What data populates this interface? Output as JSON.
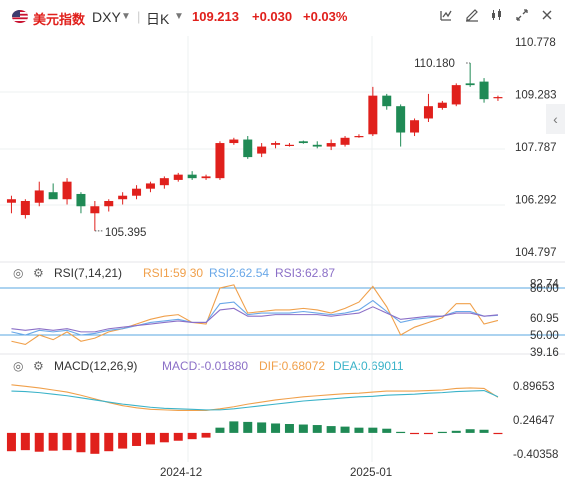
{
  "header": {
    "name": "美元指数",
    "symbol": "DXY",
    "period": "日K",
    "price": "109.213",
    "change": "+0.030",
    "change_pct": "+0.03%",
    "colors": {
      "up": "#e0201c",
      "down": "#1f8a55",
      "price": "#e0201c"
    }
  },
  "icons": [
    "us-flag-icon",
    "dropdown-icon",
    "dropdown-icon",
    "indicator-icon",
    "draw-icon",
    "settings-icon",
    "expand-icon",
    "close-icon",
    "collapse-arrow-icon",
    "eye-icon",
    "settings-icon"
  ],
  "rsi": {
    "label": "RSI(7,14,21)",
    "rsi1": "RSI1:59.30",
    "rsi2": "RSI2:62.54",
    "rsi3": "RSI3:62.87",
    "levels": [
      "80.00",
      "50.00"
    ],
    "axis": [
      "82.74",
      "60.95",
      "39.16"
    ],
    "colors": {
      "rsi1": "#f0a04b",
      "rsi2": "#6aa8e8",
      "rsi3": "#8b6fc7",
      "levels": "#5aa7e0"
    }
  },
  "macd": {
    "label": "MACD(12,26,9)",
    "macd": "MACD:-0.01880",
    "dif": "DIF:0.68072",
    "dea": "DEA:0.69011",
    "axis": [
      "0.89653",
      "0.24647",
      "-0.40358"
    ],
    "colors": {
      "macd": "#8b6fc7",
      "dif": "#f0a04b",
      "dea": "#3bb3c9"
    }
  },
  "xaxis": [
    "2024-12",
    "2025-01"
  ],
  "chart_data": [
    {
      "type": "candlestick",
      "yaxis_ticks": [
        110.778,
        109.283,
        107.787,
        106.292,
        104.797
      ],
      "ylim": [
        104.797,
        110.778
      ],
      "annotations": [
        {
          "label": "110.180",
          "at": "high"
        },
        {
          "label": "105.395",
          "at": "low"
        }
      ],
      "candles": [
        {
          "o": 106.2,
          "h": 106.4,
          "l": 105.9,
          "c": 106.3
        },
        {
          "o": 105.85,
          "h": 106.3,
          "l": 105.75,
          "c": 106.25
        },
        {
          "o": 106.2,
          "h": 106.8,
          "l": 106.1,
          "c": 106.55
        },
        {
          "o": 106.5,
          "h": 106.75,
          "l": 106.35,
          "c": 106.3
        },
        {
          "o": 106.3,
          "h": 106.9,
          "l": 106.15,
          "c": 106.8
        },
        {
          "o": 106.45,
          "h": 106.5,
          "l": 105.9,
          "c": 106.1
        },
        {
          "o": 105.9,
          "h": 106.25,
          "l": 105.4,
          "c": 106.1
        },
        {
          "o": 106.1,
          "h": 106.3,
          "l": 105.95,
          "c": 106.25
        },
        {
          "o": 106.3,
          "h": 106.5,
          "l": 106.15,
          "c": 106.4
        },
        {
          "o": 106.4,
          "h": 106.7,
          "l": 106.3,
          "c": 106.6
        },
        {
          "o": 106.6,
          "h": 106.8,
          "l": 106.5,
          "c": 106.75
        },
        {
          "o": 106.7,
          "h": 106.95,
          "l": 106.6,
          "c": 106.9
        },
        {
          "o": 106.85,
          "h": 107.05,
          "l": 106.8,
          "c": 107.0
        },
        {
          "o": 107.0,
          "h": 107.1,
          "l": 106.85,
          "c": 106.9
        },
        {
          "o": 106.9,
          "h": 107.0,
          "l": 106.85,
          "c": 106.95
        },
        {
          "o": 106.9,
          "h": 107.95,
          "l": 106.85,
          "c": 107.9
        },
        {
          "o": 107.9,
          "h": 108.05,
          "l": 107.85,
          "c": 108.0
        },
        {
          "o": 108.0,
          "h": 108.1,
          "l": 107.45,
          "c": 107.5
        },
        {
          "o": 107.6,
          "h": 107.9,
          "l": 107.5,
          "c": 107.8
        },
        {
          "o": 107.85,
          "h": 107.95,
          "l": 107.75,
          "c": 107.9
        },
        {
          "o": 107.85,
          "h": 107.9,
          "l": 107.8,
          "c": 107.85
        },
        {
          "o": 107.95,
          "h": 107.97,
          "l": 107.88,
          "c": 107.9
        },
        {
          "o": 107.85,
          "h": 107.95,
          "l": 107.75,
          "c": 107.8
        },
        {
          "o": 107.8,
          "h": 108.0,
          "l": 107.7,
          "c": 107.9
        },
        {
          "o": 107.85,
          "h": 108.1,
          "l": 107.8,
          "c": 108.05
        },
        {
          "o": 108.1,
          "h": 108.15,
          "l": 108.05,
          "c": 108.1
        },
        {
          "o": 108.15,
          "h": 109.5,
          "l": 108.1,
          "c": 109.25
        },
        {
          "o": 109.25,
          "h": 109.3,
          "l": 108.85,
          "c": 108.95
        },
        {
          "o": 108.95,
          "h": 109.0,
          "l": 107.8,
          "c": 108.2
        },
        {
          "o": 108.2,
          "h": 108.6,
          "l": 108.1,
          "c": 108.55
        },
        {
          "o": 108.6,
          "h": 109.3,
          "l": 108.5,
          "c": 108.95
        },
        {
          "o": 108.9,
          "h": 109.1,
          "l": 108.85,
          "c": 109.05
        },
        {
          "o": 109.0,
          "h": 109.6,
          "l": 108.95,
          "c": 109.55
        },
        {
          "o": 109.6,
          "h": 110.18,
          "l": 109.5,
          "c": 109.55
        },
        {
          "o": 109.65,
          "h": 109.75,
          "l": 109.05,
          "c": 109.15
        },
        {
          "o": 109.2,
          "h": 109.25,
          "l": 109.1,
          "c": 109.21
        }
      ]
    },
    {
      "type": "line",
      "name": "RSI",
      "ylim": [
        39.16,
        82.74
      ],
      "series": [
        {
          "name": "RSI1",
          "values": [
            46,
            44,
            50,
            47,
            52,
            46,
            48,
            52,
            54,
            57,
            60,
            62,
            63,
            58,
            57,
            80,
            82,
            64,
            65,
            66,
            66,
            67,
            66,
            64,
            67,
            71,
            81,
            68,
            50,
            55,
            58,
            61,
            70,
            70,
            57,
            59.3
          ]
        },
        {
          "name": "RSI2",
          "values": [
            52,
            50,
            53,
            52,
            53,
            50,
            51,
            53,
            54,
            56,
            58,
            59,
            60,
            58,
            58,
            70,
            71,
            63,
            64,
            64,
            64,
            65,
            64,
            63,
            64,
            66,
            72,
            65,
            58,
            60,
            61,
            62,
            65,
            65,
            62,
            62.54
          ]
        },
        {
          "name": "RSI3",
          "values": [
            54,
            53,
            54,
            53,
            54,
            52,
            52,
            54,
            55,
            56,
            57,
            58,
            59,
            58,
            58,
            66,
            67,
            62,
            62,
            63,
            63,
            63,
            63,
            62,
            63,
            64,
            68,
            64,
            60,
            61,
            62,
            62,
            64,
            64,
            62,
            62.87
          ]
        }
      ]
    },
    {
      "type": "line+bar",
      "name": "MACD",
      "ylim": [
        -0.40358,
        0.89653
      ],
      "series": [
        {
          "name": "DIF",
          "values": [
            0.92,
            0.89,
            0.86,
            0.82,
            0.78,
            0.72,
            0.65,
            0.58,
            0.52,
            0.48,
            0.45,
            0.44,
            0.43,
            0.43,
            0.43,
            0.46,
            0.5,
            0.55,
            0.59,
            0.63,
            0.66,
            0.69,
            0.71,
            0.73,
            0.75,
            0.76,
            0.78,
            0.8,
            0.8,
            0.8,
            0.81,
            0.82,
            0.85,
            0.86,
            0.85,
            0.68
          ]
        },
        {
          "name": "DEA",
          "values": [
            0.8,
            0.79,
            0.77,
            0.74,
            0.71,
            0.67,
            0.63,
            0.59,
            0.55,
            0.52,
            0.49,
            0.47,
            0.46,
            0.45,
            0.44,
            0.44,
            0.46,
            0.49,
            0.52,
            0.55,
            0.58,
            0.61,
            0.63,
            0.65,
            0.67,
            0.69,
            0.7,
            0.72,
            0.73,
            0.74,
            0.76,
            0.77,
            0.79,
            0.8,
            0.81,
            0.69
          ]
        },
        {
          "name": "MACD",
          "values": [
            -0.35,
            -0.33,
            -0.36,
            -0.34,
            -0.33,
            -0.37,
            -0.4,
            -0.35,
            -0.3,
            -0.25,
            -0.22,
            -0.18,
            -0.15,
            -0.12,
            -0.09,
            0.1,
            0.22,
            0.21,
            0.2,
            0.18,
            0.17,
            0.16,
            0.15,
            0.13,
            0.12,
            0.1,
            0.1,
            0.08,
            0.02,
            -0.01,
            -0.02,
            0.02,
            0.04,
            0.07,
            0.06,
            -0.0188
          ]
        }
      ]
    }
  ]
}
